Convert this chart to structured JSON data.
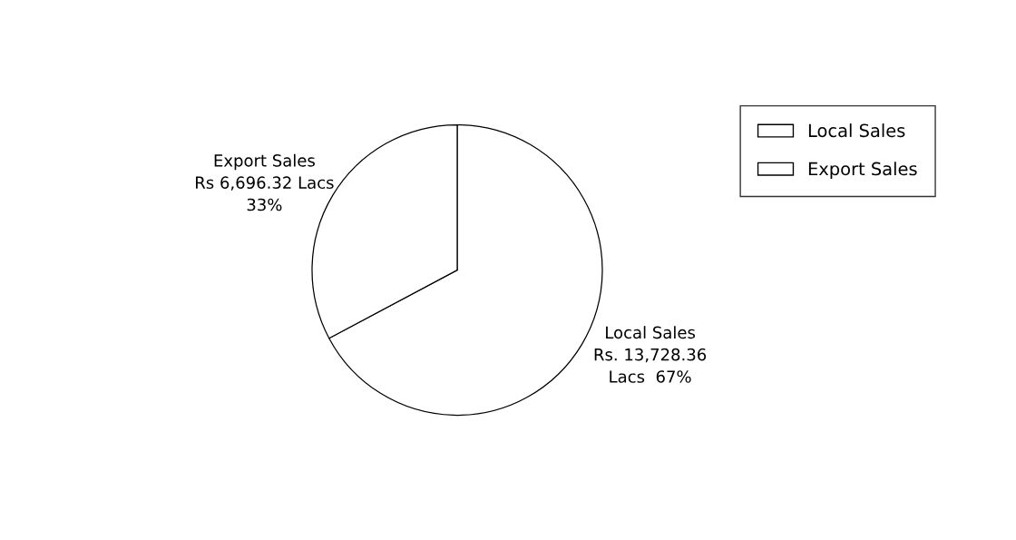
{
  "chart_data": {
    "type": "pie",
    "categories": [
      "Local Sales",
      "Export Sales"
    ],
    "values": [
      13728.36,
      6696.32
    ],
    "colors": [
      "#ffffff",
      "#ffffff"
    ],
    "value_labels": [
      "Local Sales\nRs. 13,728.36\nLacs  67%",
      "Export Sales\nRs 6,696.32 Lacs\n33%"
    ],
    "legend": "right"
  }
}
